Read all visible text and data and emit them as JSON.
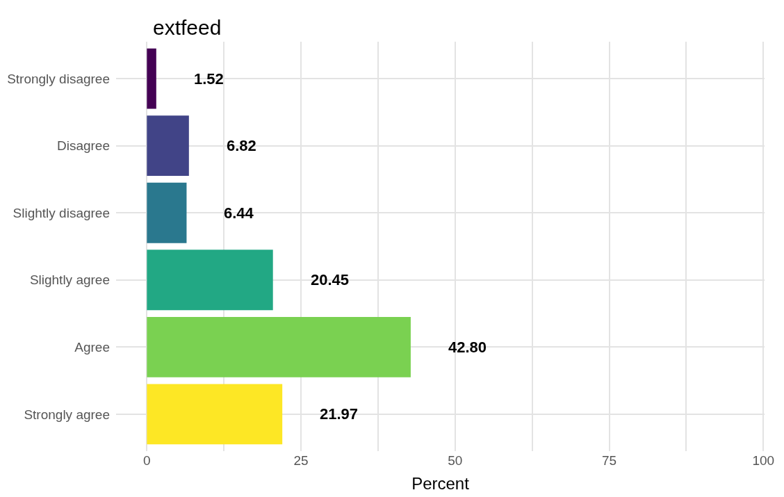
{
  "chart_data": {
    "type": "bar",
    "orientation": "horizontal",
    "title": "extfeed",
    "xlabel": "Percent",
    "categories": [
      "Strongly disagree",
      "Disagree",
      "Slightly disagree",
      "Slightly agree",
      "Agree",
      "Strongly agree"
    ],
    "values": [
      1.52,
      6.82,
      6.44,
      20.45,
      42.8,
      21.97
    ],
    "value_labels": [
      "1.52",
      "6.82",
      "6.44",
      "20.45",
      "42.80",
      "21.97"
    ],
    "colors": [
      "#440154",
      "#414487",
      "#2a788e",
      "#22a884",
      "#7ad151",
      "#fde725"
    ],
    "xlim": [
      -5,
      100.2
    ],
    "xticks": [
      0,
      {
        "value": 12.5,
        "label": null
      },
      25,
      {
        "value": 37.5,
        "label": null
      },
      50,
      {
        "value": 62.5,
        "label": null
      },
      75,
      {
        "value": 87.5,
        "label": null
      },
      100
    ],
    "grid": true,
    "legend": false
  }
}
